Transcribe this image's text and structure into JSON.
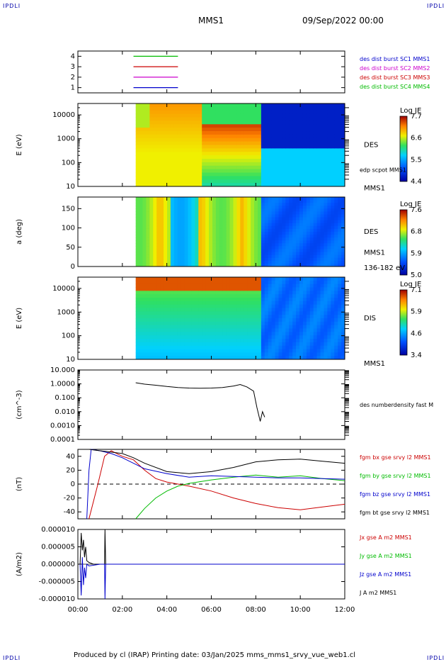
{
  "corner_label": "IPDLI",
  "header": {
    "spacecraft": "MMS1",
    "datetime": "09/Sep/2022 00:00"
  },
  "footer": "Produced by cl (IRAP)   Printing date: 03/Jan/2025   mms_mms1_srvy_vue_web1.cl",
  "time_axis": {
    "ticks": [
      "00:00",
      "02:00",
      "04:00",
      "06:00",
      "08:00",
      "10:00",
      "12:00"
    ],
    "range_hours": [
      0,
      12
    ]
  },
  "colors": {
    "red": "#cc0000",
    "green": "#00bb00",
    "blue": "#0000cc",
    "magenta": "#cc00cc",
    "black": "#000000"
  },
  "chart_data": [
    {
      "type": "line",
      "id": "burst",
      "ylim": [
        0.5,
        4.5
      ],
      "yticks": [
        "1",
        "2",
        "3",
        "4"
      ],
      "legend": [
        "des dist burst SC1 MMS1",
        "des dist burst SC2 MMS2",
        "des dist burst SC3 MMS3",
        "des dist burst SC4 MMS4"
      ],
      "legend_colors": [
        "blue",
        "magenta",
        "red",
        "green"
      ],
      "series": [
        {
          "level": 4,
          "color": "green",
          "x": [
            2.5,
            4.5
          ]
        },
        {
          "level": 3,
          "color": "red",
          "x": [
            2.5,
            4.5
          ]
        },
        {
          "level": 2,
          "color": "magenta",
          "x": [
            2.5,
            4.5
          ]
        },
        {
          "level": 1,
          "color": "blue",
          "x": [
            2.5,
            4.5
          ]
        }
      ]
    },
    {
      "type": "heatmap",
      "id": "des-energy",
      "ylabel": "E (eV)",
      "yscale": "log",
      "ylim": [
        10,
        30000
      ],
      "yticks": [
        "10",
        "100",
        "1000",
        "10000"
      ],
      "right_labels": [
        "DES",
        "edp scpot MMS1",
        "MMS1"
      ],
      "colorbar": {
        "title": "Log JE",
        "ticks": [
          "7.7",
          "6.6",
          "5.5",
          "4.4"
        ],
        "range": [
          4.4,
          7.7
        ]
      },
      "data_start_hour": 2.6
    },
    {
      "type": "heatmap",
      "id": "des-pitch",
      "ylabel": "a (deg)",
      "ylim": [
        0,
        180
      ],
      "yticks": [
        "0",
        "50",
        "100",
        "150"
      ],
      "right_labels": [
        "DES",
        "MMS1",
        "136-182 eV"
      ],
      "colorbar": {
        "title": "Log JE",
        "ticks": [
          "7.6",
          "6.8",
          "5.9",
          "5.0"
        ],
        "range": [
          5.0,
          7.6
        ]
      },
      "data_start_hour": 2.6
    },
    {
      "type": "heatmap",
      "id": "dis-energy",
      "ylabel": "E (eV)",
      "yscale": "log",
      "ylim": [
        10,
        30000
      ],
      "yticks": [
        "10",
        "100",
        "1000",
        "10000"
      ],
      "right_labels": [
        "DIS",
        "MMS1"
      ],
      "colorbar": {
        "title": "Log JE",
        "ticks": [
          "7.1",
          "5.9",
          "4.6",
          "3.4"
        ],
        "range": [
          3.4,
          7.1
        ]
      },
      "data_start_hour": 2.6
    },
    {
      "type": "line",
      "id": "density",
      "ylabel": "(cm^-3)",
      "yscale": "log",
      "ylim": [
        0.0001,
        10
      ],
      "yticks": [
        "0.0001",
        "0.0010",
        "0.010",
        "0.100",
        "1.0000",
        "10.000"
      ],
      "legend": [
        "des numberdensity fast M"
      ],
      "series": [
        {
          "color": "black",
          "x": [
            2.6,
            3.0,
            3.5,
            4.0,
            4.5,
            5.0,
            5.5,
            6.0,
            6.5,
            7.0,
            7.3,
            7.6,
            7.9,
            8.05,
            8.2,
            8.3,
            8.4
          ],
          "y": [
            1.2,
            0.95,
            0.8,
            0.65,
            0.55,
            0.5,
            0.48,
            0.5,
            0.55,
            0.7,
            0.9,
            0.6,
            0.3,
            0.02,
            0.002,
            0.01,
            0.004
          ]
        }
      ]
    },
    {
      "type": "line",
      "id": "bfield",
      "ylabel": "(nT)",
      "ylim": [
        -50,
        50
      ],
      "yticks": [
        "-40",
        "-20",
        "0",
        "20",
        "40"
      ],
      "legend": [
        "fgm bx gse srvy l2 MMS1",
        "fgm by gse srvy l2 MMS1",
        "fgm bz gse srvy l2 MMS1",
        "fgm bt gse srvy l2 MMS1"
      ],
      "legend_colors": [
        "red",
        "green",
        "blue",
        "black"
      ],
      "series": [
        {
          "color": "red",
          "x": [
            0.5,
            0.9,
            1.2,
            1.5,
            2.0,
            2.5,
            3.0,
            3.5,
            4.0,
            5.0,
            6.0,
            7.0,
            8.0,
            9.0,
            10.0,
            11.0,
            12.0
          ],
          "y": [
            -50,
            0,
            40,
            48,
            40,
            35,
            20,
            8,
            3,
            -3,
            -10,
            -20,
            -28,
            -34,
            -37,
            -33,
            -29
          ]
        },
        {
          "color": "green",
          "x": [
            2.6,
            3.0,
            3.5,
            4.0,
            4.5,
            5.0,
            6.0,
            7.0,
            8.0,
            9.0,
            10.0,
            11.0,
            12.0
          ],
          "y": [
            -50,
            -35,
            -20,
            -10,
            -3,
            1,
            6,
            10,
            13,
            10,
            12,
            8,
            5
          ]
        },
        {
          "color": "blue",
          "x": [
            0.4,
            0.5,
            0.6,
            1.0,
            1.5,
            2.0,
            2.5,
            3.0,
            4.0,
            5.0,
            6.0,
            7.0,
            8.0,
            9.0,
            10.0,
            11.0,
            12.0
          ],
          "y": [
            -50,
            20,
            50,
            48,
            44,
            38,
            30,
            22,
            15,
            10,
            12,
            11,
            10,
            9,
            9,
            8,
            7
          ]
        },
        {
          "color": "black",
          "x": [
            0.5,
            1.0,
            1.5,
            2.0,
            2.5,
            3.0,
            4.0,
            5.0,
            6.0,
            7.0,
            8.0,
            9.0,
            10.0,
            11.0,
            12.0
          ],
          "y": [
            50,
            48,
            46,
            44,
            38,
            30,
            18,
            15,
            18,
            24,
            32,
            35,
            36,
            33,
            30
          ]
        }
      ]
    },
    {
      "type": "line",
      "id": "current",
      "ylabel": "(A/m2)",
      "ylim": [
        -1e-05,
        1e-05
      ],
      "yticks": [
        "-0.000010",
        "-0.000005",
        "0.000000",
        "0.000005",
        "0.000010"
      ],
      "legend": [
        "Jx gse A m2 MMS1",
        "Jy gse A m2 MMS1",
        "Jz gse A m2 MMS1",
        "J A m2 MMS1"
      ],
      "legend_colors": [
        "red",
        "green",
        "blue",
        "black"
      ],
      "series": [
        {
          "color": "black",
          "x": [
            0.1,
            0.15,
            0.2,
            0.25,
            0.3,
            0.35,
            0.4,
            0.5,
            0.7,
            1.0,
            1.2,
            1.22,
            1.25,
            1.5,
            2.0,
            4.0,
            8.0,
            12.0
          ],
          "y": [
            0.0,
            9e-06,
            4e-06,
            7e-06,
            2e-06,
            5e-06,
            1e-06,
            5e-07,
            0.0,
            0.0,
            0.0,
            1e-05,
            0.0,
            0.0,
            0.0,
            0.0,
            0.0,
            0.0
          ]
        },
        {
          "color": "blue",
          "x": [
            0.1,
            0.15,
            0.2,
            0.25,
            0.3,
            0.35,
            0.4,
            0.5,
            1.0,
            1.2,
            1.22,
            1.25,
            1.5,
            12.0
          ],
          "y": [
            0.0,
            -9e-06,
            2e-06,
            -6e-06,
            -1e-06,
            -4e-06,
            0.0,
            -5e-07,
            0.0,
            0.0,
            -1e-05,
            0.0,
            0.0,
            0.0
          ]
        }
      ]
    }
  ]
}
